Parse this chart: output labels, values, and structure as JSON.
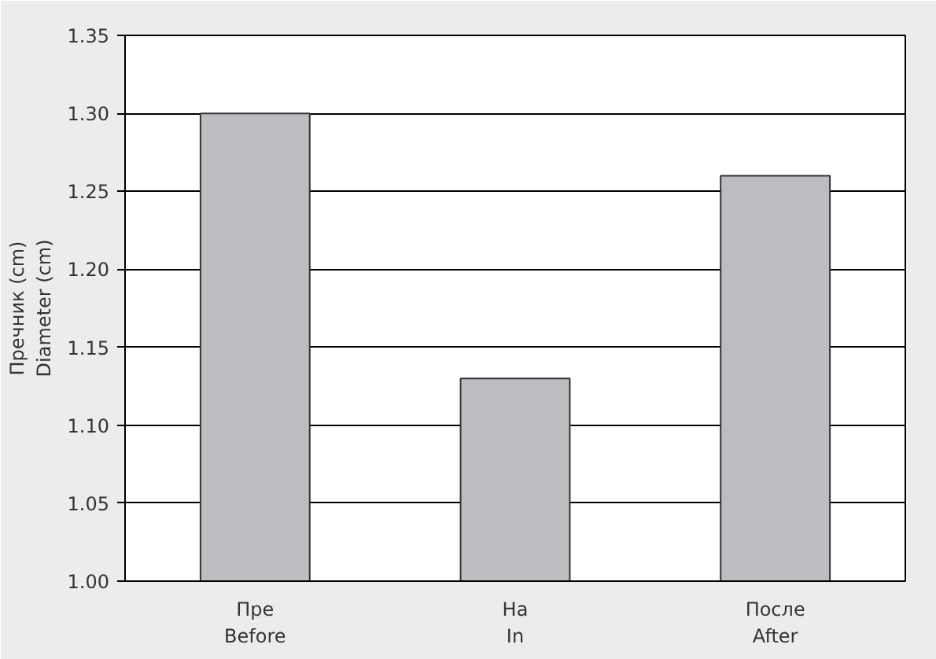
{
  "chart_data": {
    "type": "bar",
    "ylabel": "Пречник (cm)\nDiameter (cm)",
    "categories": [
      "Пре\nBefore",
      "На\nIn",
      "После\nAfter"
    ],
    "values": [
      1.3,
      1.13,
      1.26
    ],
    "color": "#bcbdc0",
    "ylim": [
      1.0,
      1.35
    ],
    "yticks": [
      {
        "value": 1.0,
        "label": "1.00"
      },
      1.05,
      {
        "value": 1.1,
        "label": "1.10"
      },
      1.15,
      {
        "value": 1.2,
        "label": "1.20"
      },
      1.25,
      {
        "value": 1.3,
        "label": "1.30"
      },
      1.35
    ],
    "grid": "y"
  }
}
